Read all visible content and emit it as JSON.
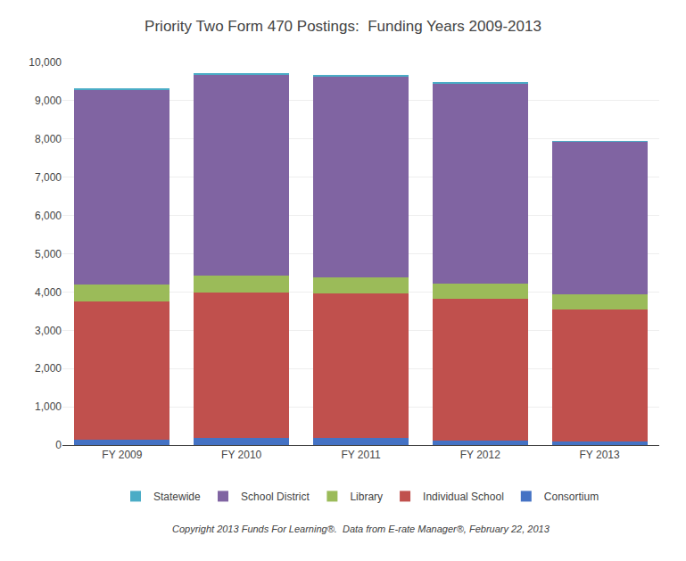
{
  "chart_data": {
    "type": "bar",
    "stacked": true,
    "title": "Priority Two Form 470 Postings:  Funding Years 2009-2013",
    "footnote": "Copyright 2013 Funds For Learning®.  Data from E-rate Manager®, February 22, 2013",
    "categories": [
      "FY 2009",
      "FY 2010",
      "FY 2011",
      "FY 2012",
      "FY 2013"
    ],
    "series": [
      {
        "name": "Consortium",
        "color": "#4472C4",
        "values": [
          150,
          175,
          175,
          125,
          100
        ]
      },
      {
        "name": "Individual School",
        "color": "#C0504D",
        "values": [
          3600,
          3800,
          3780,
          3700,
          3450
        ]
      },
      {
        "name": "Library",
        "color": "#9BBB59",
        "values": [
          450,
          450,
          420,
          400,
          400
        ]
      },
      {
        "name": "School District",
        "color": "#8064A2",
        "values": [
          5090,
          5270,
          5270,
          5230,
          3980
        ]
      },
      {
        "name": "Statewide",
        "color": "#4BACC6",
        "values": [
          30,
          30,
          30,
          20,
          15
        ]
      }
    ],
    "ylim": [
      0,
      10000
    ],
    "yticks": [
      0,
      {
        "value": 1000,
        "label": "1,000"
      },
      {
        "value": 2000,
        "label": "2,000"
      },
      {
        "value": 3000,
        "label": "3,000"
      },
      {
        "value": 4000,
        "label": "4,000"
      },
      {
        "value": 5000,
        "label": "5,000"
      },
      {
        "value": 6000,
        "label": "6,000"
      },
      {
        "value": 7000,
        "label": "7,000"
      },
      {
        "value": 8000,
        "label": "8,000"
      },
      {
        "value": 9000,
        "label": "9,000"
      },
      {
        "value": 10000,
        "label": "10,000"
      }
    ],
    "grid": true,
    "legend": "bottom"
  }
}
